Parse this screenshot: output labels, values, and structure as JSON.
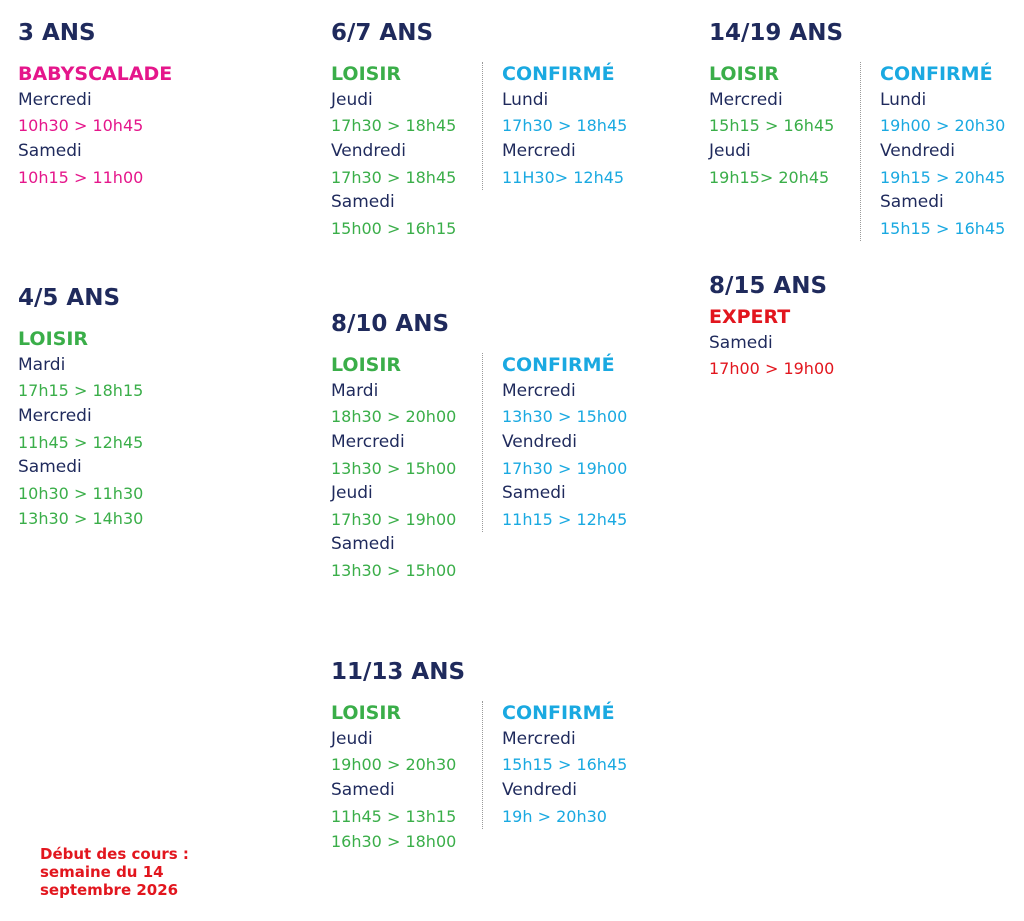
{
  "blocks": [
    {
      "title": "3 ANS",
      "columns": [
        {
          "level": "BABYSCALADE",
          "color": "#e5168b",
          "days": [
            {
              "day": "Mercredi",
              "times": [
                "10h30 > 10h45"
              ]
            },
            {
              "day": "Samedi",
              "times": [
                "10h15 > 11h00"
              ]
            }
          ]
        }
      ]
    },
    {
      "title": "4/5 ANS",
      "columns": [
        {
          "level": "LOISIR",
          "color": "#3aae49",
          "days": [
            {
              "day": "Mardi",
              "times": [
                "17h15 > 18h15"
              ]
            },
            {
              "day": "Mercredi",
              "times": [
                "11h45 > 12h45"
              ]
            },
            {
              "day": "Samedi",
              "times": [
                "10h30 > 11h30",
                "13h30 > 14h30"
              ]
            }
          ]
        }
      ]
    },
    {
      "title": "6/7 ANS",
      "columns": [
        {
          "level": "LOISIR",
          "color": "#3aae49",
          "days": [
            {
              "day": "Jeudi",
              "times": [
                "17h30 > 18h45"
              ]
            },
            {
              "day": "Vendredi",
              "times": [
                "17h30 > 18h45"
              ]
            },
            {
              "day": "Samedi",
              "times": [
                "15h00 > 16h15"
              ]
            }
          ]
        },
        {
          "level": "CONFIRMÉ",
          "color": "#1aa9e1",
          "days": [
            {
              "day": "Lundi",
              "times": [
                "17h30 > 18h45"
              ]
            },
            {
              "day": "Mercredi",
              "times": [
                "11H30> 12h45"
              ]
            }
          ]
        }
      ]
    },
    {
      "title": "8/10 ANS",
      "columns": [
        {
          "level": "LOISIR",
          "color": "#3aae49",
          "days": [
            {
              "day": "Mardi",
              "times": [
                "18h30 > 20h00"
              ]
            },
            {
              "day": "Mercredi",
              "times": [
                "13h30 > 15h00"
              ]
            },
            {
              "day": "Jeudi",
              "times": [
                "17h30 > 19h00"
              ]
            },
            {
              "day": "Samedi",
              "times": [
                "13h30 > 15h00"
              ]
            }
          ]
        },
        {
          "level": "CONFIRMÉ",
          "color": "#1aa9e1",
          "days": [
            {
              "day": "Mercredi",
              "times": [
                "13h30 > 15h00"
              ]
            },
            {
              "day": "Vendredi",
              "times": [
                "17h30 > 19h00"
              ]
            },
            {
              "day": "Samedi",
              "times": [
                "11h15 > 12h45"
              ]
            }
          ]
        }
      ]
    },
    {
      "title": "11/13 ANS",
      "columns": [
        {
          "level": "LOISIR",
          "color": "#3aae49",
          "days": [
            {
              "day": "Jeudi",
              "times": [
                "19h00 > 20h30"
              ]
            },
            {
              "day": "Samedi",
              "times": [
                "11h45 > 13h15",
                "16h30 > 18h00"
              ]
            }
          ]
        },
        {
          "level": "CONFIRMÉ",
          "color": "#1aa9e1",
          "days": [
            {
              "day": "Mercredi",
              "times": [
                "15h15 > 16h45"
              ]
            },
            {
              "day": "Vendredi",
              "times": [
                "19h > 20h30"
              ]
            }
          ]
        }
      ]
    },
    {
      "title": "14/19 ANS",
      "columns": [
        {
          "level": "LOISIR",
          "color": "#3aae49",
          "days": [
            {
              "day": "Mercredi",
              "times": [
                "15h15 > 16h45"
              ]
            },
            {
              "day": "Jeudi",
              "times": [
                "19h15> 20h45"
              ]
            }
          ]
        },
        {
          "level": "CONFIRMÉ",
          "color": "#1aa9e1",
          "days": [
            {
              "day": "Lundi",
              "times": [
                "19h00 > 20h30"
              ]
            },
            {
              "day": "Vendredi",
              "times": [
                "19h15 > 20h45"
              ]
            },
            {
              "day": "Samedi",
              "times": [
                "15h15 > 16h45"
              ]
            }
          ]
        }
      ]
    },
    {
      "title": "8/15 ANS",
      "columns": [
        {
          "level": "EXPERT",
          "color": "#e2161e",
          "days": [
            {
              "day": "Samedi",
              "times": [
                "17h00 > 19h00"
              ]
            }
          ]
        }
      ]
    }
  ],
  "note": [
    "Début des cours :",
    "semaine du 14",
    "septembre 2026"
  ]
}
